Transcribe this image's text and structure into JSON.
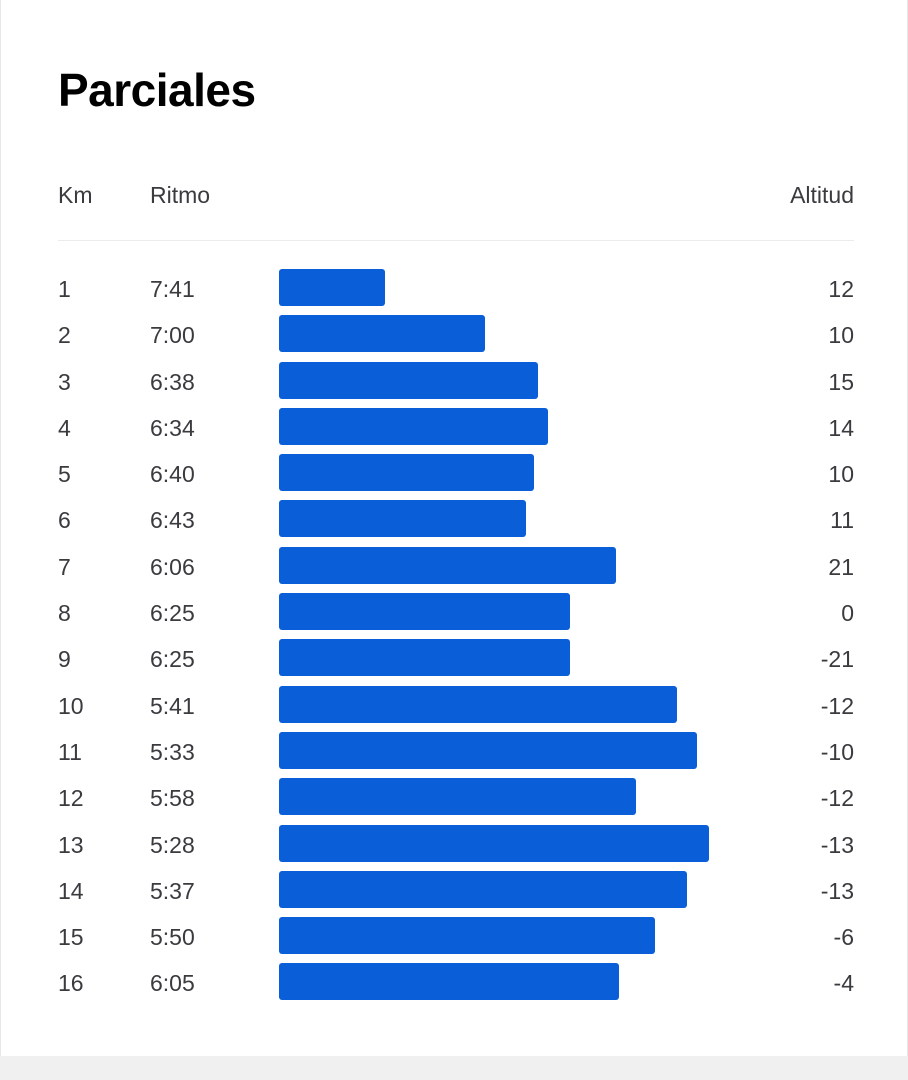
{
  "title": "Parciales",
  "columns": {
    "km": "Km",
    "pace": "Ritmo",
    "altitude": "Altitud"
  },
  "bar_color": "#0a5ed8",
  "splits": [
    {
      "km": "1",
      "pace": "7:41",
      "altitude": "12",
      "pace_seconds": 461
    },
    {
      "km": "2",
      "pace": "7:00",
      "altitude": "10",
      "pace_seconds": 420
    },
    {
      "km": "3",
      "pace": "6:38",
      "altitude": "15",
      "pace_seconds": 398
    },
    {
      "km": "4",
      "pace": "6:34",
      "altitude": "14",
      "pace_seconds": 394
    },
    {
      "km": "5",
      "pace": "6:40",
      "altitude": "10",
      "pace_seconds": 400
    },
    {
      "km": "6",
      "pace": "6:43",
      "altitude": "11",
      "pace_seconds": 403
    },
    {
      "km": "7",
      "pace": "6:06",
      "altitude": "21",
      "pace_seconds": 366
    },
    {
      "km": "8",
      "pace": "6:25",
      "altitude": "0",
      "pace_seconds": 385
    },
    {
      "km": "9",
      "pace": "6:25",
      "altitude": "-21",
      "pace_seconds": 385
    },
    {
      "km": "10",
      "pace": "5:41",
      "altitude": "-12",
      "pace_seconds": 341
    },
    {
      "km": "11",
      "pace": "5:33",
      "altitude": "-10",
      "pace_seconds": 333
    },
    {
      "km": "12",
      "pace": "5:58",
      "altitude": "-12",
      "pace_seconds": 358
    },
    {
      "km": "13",
      "pace": "5:28",
      "altitude": "-13",
      "pace_seconds": 328
    },
    {
      "km": "14",
      "pace": "5:37",
      "altitude": "-13",
      "pace_seconds": 337
    },
    {
      "km": "15",
      "pace": "5:50",
      "altitude": "-6",
      "pace_seconds": 350
    },
    {
      "km": "16",
      "pace": "6:05",
      "altitude": "-4",
      "pace_seconds": 365
    }
  ]
}
